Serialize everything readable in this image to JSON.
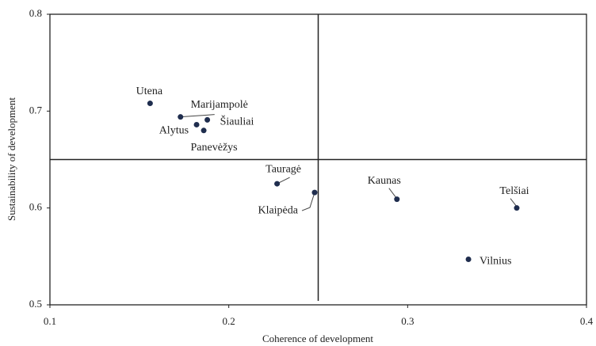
{
  "chart_data": {
    "type": "scatter",
    "x_label": "Coherence of development",
    "y_label": "Sustainability of development",
    "series": [
      {
        "color": "#1f2d4e",
        "labels": [
          "Utena",
          "Marijampolė",
          "Šiauliai",
          "Alytus",
          "Panevėžys",
          "Tauragė",
          "Klaipėda",
          "Kaunas",
          "Telšiai",
          "Vilnius"
        ],
        "x": [
          0.156,
          0.173,
          0.188,
          0.182,
          0.186,
          0.227,
          0.248,
          0.294,
          0.361,
          0.334
        ],
        "values": [
          0.708,
          0.694,
          0.691,
          0.686,
          0.68,
          0.625,
          0.616,
          0.609,
          0.6,
          0.547
        ]
      }
    ],
    "xlim": [
      0.1,
      0.4
    ],
    "xticks": [
      0.1,
      0.2,
      0.3,
      0.4
    ],
    "ylim": [
      0.5,
      0.8
    ],
    "yticks": [
      0.5,
      0.6,
      0.7,
      0.8
    ],
    "reference_lines": {
      "x": 0.25,
      "y": 0.65
    }
  }
}
